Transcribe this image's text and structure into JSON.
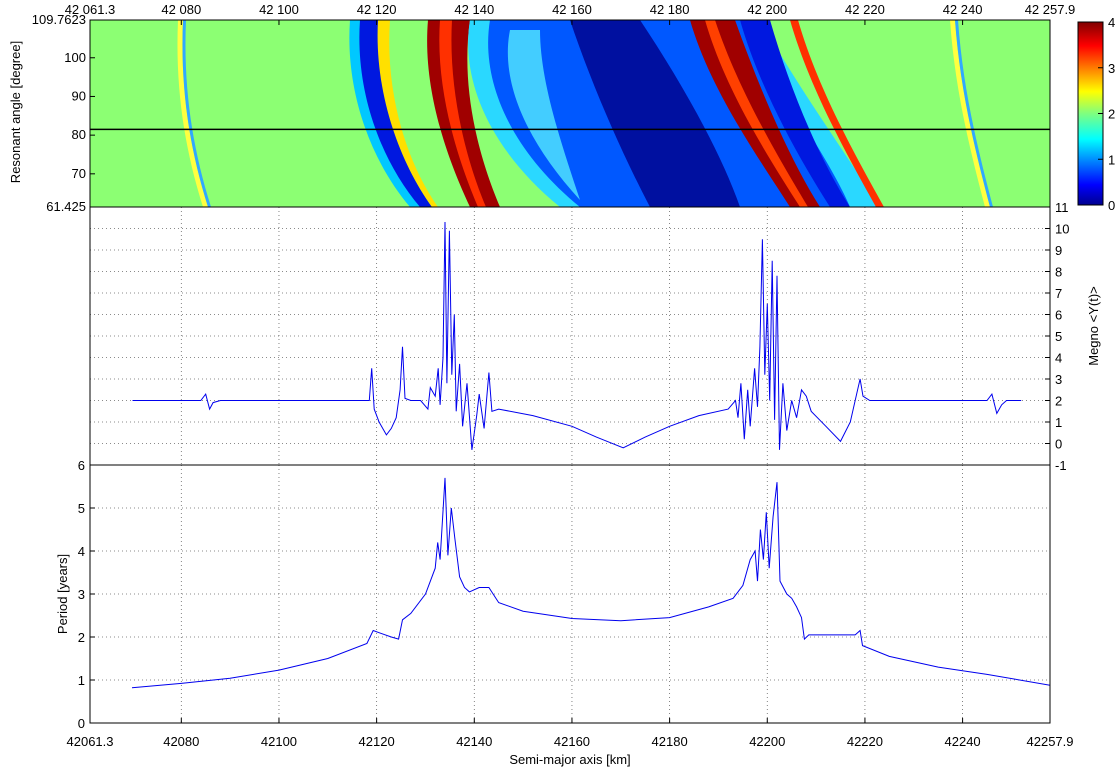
{
  "figure": {
    "colors": {
      "line": "#0000ee",
      "axis": "#000000",
      "grid": "#555555",
      "bg": "#ffffff"
    }
  },
  "chart_data": [
    {
      "type": "heatmap",
      "title": "",
      "xlabel": "",
      "ylabel": "Resonant angle  [degree]",
      "xlim": [
        42061.3,
        42257.9
      ],
      "ylim": [
        61.425,
        109.7623
      ],
      "x_tick_labels": [
        {
          "v": 42061.3,
          "t": "42 061.3"
        },
        {
          "v": 42080,
          "t": "42 080"
        },
        {
          "v": 42100,
          "t": "42 100"
        },
        {
          "v": 42120,
          "t": "42 120"
        },
        {
          "v": 42140,
          "t": "42 140"
        },
        {
          "v": 42160,
          "t": "42 160"
        },
        {
          "v": 42180,
          "t": "42 180"
        },
        {
          "v": 42200,
          "t": "42 200"
        },
        {
          "v": 42220,
          "t": "42 220"
        },
        {
          "v": 42240,
          "t": "42 240"
        },
        {
          "v": 42257.9,
          "t": "42 257.9"
        }
      ],
      "y_tick_labels": [
        {
          "v": 61.425,
          "t": "61.425"
        },
        {
          "v": 70,
          "t": "70"
        },
        {
          "v": 80,
          "t": "80"
        },
        {
          "v": 90,
          "t": "90"
        },
        {
          "v": 100,
          "t": "100"
        },
        {
          "v": 109.7623,
          "t": "109.7623"
        }
      ],
      "reference_line_y": 81.5,
      "colorbar": {
        "range": [
          0,
          4
        ],
        "ticks": [
          "0",
          "1",
          "2",
          "3",
          "4"
        ],
        "colormap": "jet"
      },
      "note_fields": "MEGNO map: background ~2 (green), chaotic bands red near x 42130-42140 and 42185-42205, regular regions blue"
    },
    {
      "type": "line",
      "title": "",
      "xlabel": "",
      "ylabel": "Megno <Y(t)>",
      "y_axis_side": "right",
      "xlim": [
        42061.3,
        42257.9
      ],
      "ylim": [
        -1,
        11
      ],
      "y_ticks": [
        "-1",
        "0",
        "1",
        "2",
        "3",
        "4",
        "5",
        "6",
        "7",
        "8",
        "9",
        "10",
        "11"
      ],
      "grid": true,
      "series": [
        {
          "points": [
            [
              42070,
              2.0
            ],
            [
              42084,
              2.0
            ],
            [
              42085,
              2.3
            ],
            [
              42085.8,
              1.6
            ],
            [
              42086.5,
              1.9
            ],
            [
              42088,
              2.0
            ],
            [
              42117,
              2.0
            ],
            [
              42118.5,
              2.0
            ],
            [
              42119,
              3.5
            ],
            [
              42119.5,
              1.6
            ],
            [
              42120.5,
              1.0
            ],
            [
              42122,
              0.4
            ],
            [
              42123,
              0.7
            ],
            [
              42124,
              1.2
            ],
            [
              42124.8,
              2.5
            ],
            [
              42125.3,
              4.5
            ],
            [
              42125.8,
              2.1
            ],
            [
              42127,
              2.0
            ],
            [
              42129,
              2.0
            ],
            [
              42130.5,
              1.6
            ],
            [
              42131,
              2.6
            ],
            [
              42132,
              2.2
            ],
            [
              42132.6,
              3.5
            ],
            [
              42133,
              1.8
            ],
            [
              42133.6,
              4.0
            ],
            [
              42134,
              10.3
            ],
            [
              42134.4,
              2.8
            ],
            [
              42134.9,
              9.9
            ],
            [
              42135.4,
              3.2
            ],
            [
              42135.9,
              6.0
            ],
            [
              42136.3,
              1.5
            ],
            [
              42137,
              3.7
            ],
            [
              42137.6,
              0.8
            ],
            [
              42138.5,
              2.8
            ],
            [
              42139.5,
              -0.3
            ],
            [
              42140.5,
              1.3
            ],
            [
              42141,
              2.3
            ],
            [
              42142,
              0.7
            ],
            [
              42143,
              3.3
            ],
            [
              42143.6,
              1.5
            ],
            [
              42145,
              1.6
            ],
            [
              42152,
              1.3
            ],
            [
              42160,
              0.8
            ],
            [
              42165,
              0.3
            ],
            [
              42170.5,
              -0.2
            ],
            [
              42175,
              0.3
            ],
            [
              42180,
              0.8
            ],
            [
              42186,
              1.3
            ],
            [
              42192,
              1.6
            ],
            [
              42193.5,
              2.0
            ],
            [
              42194,
              1.2
            ],
            [
              42194.6,
              2.8
            ],
            [
              42195.3,
              0.2
            ],
            [
              42196,
              2.5
            ],
            [
              42196.5,
              0.8
            ],
            [
              42197.4,
              3.5
            ],
            [
              42198,
              1.7
            ],
            [
              42198.5,
              4.5
            ],
            [
              42199,
              9.5
            ],
            [
              42199.5,
              3.2
            ],
            [
              42200,
              6.5
            ],
            [
              42200.5,
              2.0
            ],
            [
              42201,
              8.5
            ],
            [
              42201.5,
              1.1
            ],
            [
              42202,
              7.8
            ],
            [
              42202.5,
              -0.3
            ],
            [
              42203.2,
              2.8
            ],
            [
              42204,
              0.6
            ],
            [
              42205,
              2.0
            ],
            [
              42206,
              1.2
            ],
            [
              42207,
              2.5
            ],
            [
              42208,
              2.2
            ],
            [
              42209,
              1.5
            ],
            [
              42212,
              0.8
            ],
            [
              42215,
              0.1
            ],
            [
              42217,
              1.0
            ],
            [
              42218.5,
              2.5
            ],
            [
              42219,
              3.0
            ],
            [
              42219.6,
              2.2
            ],
            [
              42221,
              2.0
            ],
            [
              42245,
              2.0
            ],
            [
              42246,
              2.3
            ],
            [
              42247,
              1.4
            ],
            [
              42248,
              1.8
            ],
            [
              42249,
              2.0
            ],
            [
              42252,
              2.0
            ]
          ]
        }
      ]
    },
    {
      "type": "line",
      "title": "",
      "xlabel": "Semi-major axis  [km]",
      "ylabel": "Period  [years]",
      "xlim": [
        42061.3,
        42257.9
      ],
      "ylim": [
        0,
        6
      ],
      "x_tick_labels": [
        {
          "v": 42061.3,
          "t": "42061.3"
        },
        {
          "v": 42080,
          "t": "42080"
        },
        {
          "v": 42100,
          "t": "42100"
        },
        {
          "v": 42120,
          "t": "42120"
        },
        {
          "v": 42140,
          "t": "42140"
        },
        {
          "v": 42160,
          "t": "42160"
        },
        {
          "v": 42180,
          "t": "42180"
        },
        {
          "v": 42200,
          "t": "42200"
        },
        {
          "v": 42220,
          "t": "42220"
        },
        {
          "v": 42240,
          "t": "42240"
        },
        {
          "v": 42257.9,
          "t": "42257.9"
        }
      ],
      "y_ticks": [
        "0",
        "1",
        "2",
        "3",
        "4",
        "5",
        "6"
      ],
      "grid": true,
      "series": [
        {
          "points": [
            [
              42069.9,
              0.82
            ],
            [
              42080,
              0.92
            ],
            [
              42090,
              1.04
            ],
            [
              42100,
              1.23
            ],
            [
              42110,
              1.5
            ],
            [
              42118,
              1.85
            ],
            [
              42119.3,
              2.15
            ],
            [
              42120.5,
              2.1
            ],
            [
              42123,
              2.0
            ],
            [
              42124.5,
              1.95
            ],
            [
              42125.3,
              2.4
            ],
            [
              42127,
              2.55
            ],
            [
              42130,
              3.0
            ],
            [
              42132,
              3.6
            ],
            [
              42132.5,
              4.2
            ],
            [
              42133,
              3.8
            ],
            [
              42134,
              5.7
            ],
            [
              42134.6,
              3.9
            ],
            [
              42135.3,
              5.0
            ],
            [
              42136,
              4.3
            ],
            [
              42137,
              3.4
            ],
            [
              42138,
              3.15
            ],
            [
              42139,
              3.05
            ],
            [
              42141,
              3.15
            ],
            [
              42143,
              3.15
            ],
            [
              42145,
              2.8
            ],
            [
              42150,
              2.6
            ],
            [
              42160,
              2.43
            ],
            [
              42170,
              2.38
            ],
            [
              42180,
              2.45
            ],
            [
              42188,
              2.7
            ],
            [
              42193,
              2.9
            ],
            [
              42195,
              3.2
            ],
            [
              42196.5,
              3.8
            ],
            [
              42197.5,
              4.0
            ],
            [
              42198,
              3.3
            ],
            [
              42198.6,
              4.5
            ],
            [
              42199.2,
              3.8
            ],
            [
              42199.8,
              4.9
            ],
            [
              42200.4,
              3.6
            ],
            [
              42201.2,
              4.8
            ],
            [
              42202,
              5.6
            ],
            [
              42202.6,
              3.3
            ],
            [
              42204,
              3.0
            ],
            [
              42205,
              2.9
            ],
            [
              42206,
              2.7
            ],
            [
              42207,
              2.45
            ],
            [
              42207.6,
              1.95
            ],
            [
              42208.5,
              2.05
            ],
            [
              42213,
              2.05
            ],
            [
              42218,
              2.05
            ],
            [
              42219,
              2.15
            ],
            [
              42219.5,
              1.8
            ],
            [
              42225,
              1.55
            ],
            [
              42235,
              1.3
            ],
            [
              42245,
              1.13
            ],
            [
              42257.9,
              0.88
            ]
          ]
        }
      ]
    }
  ]
}
